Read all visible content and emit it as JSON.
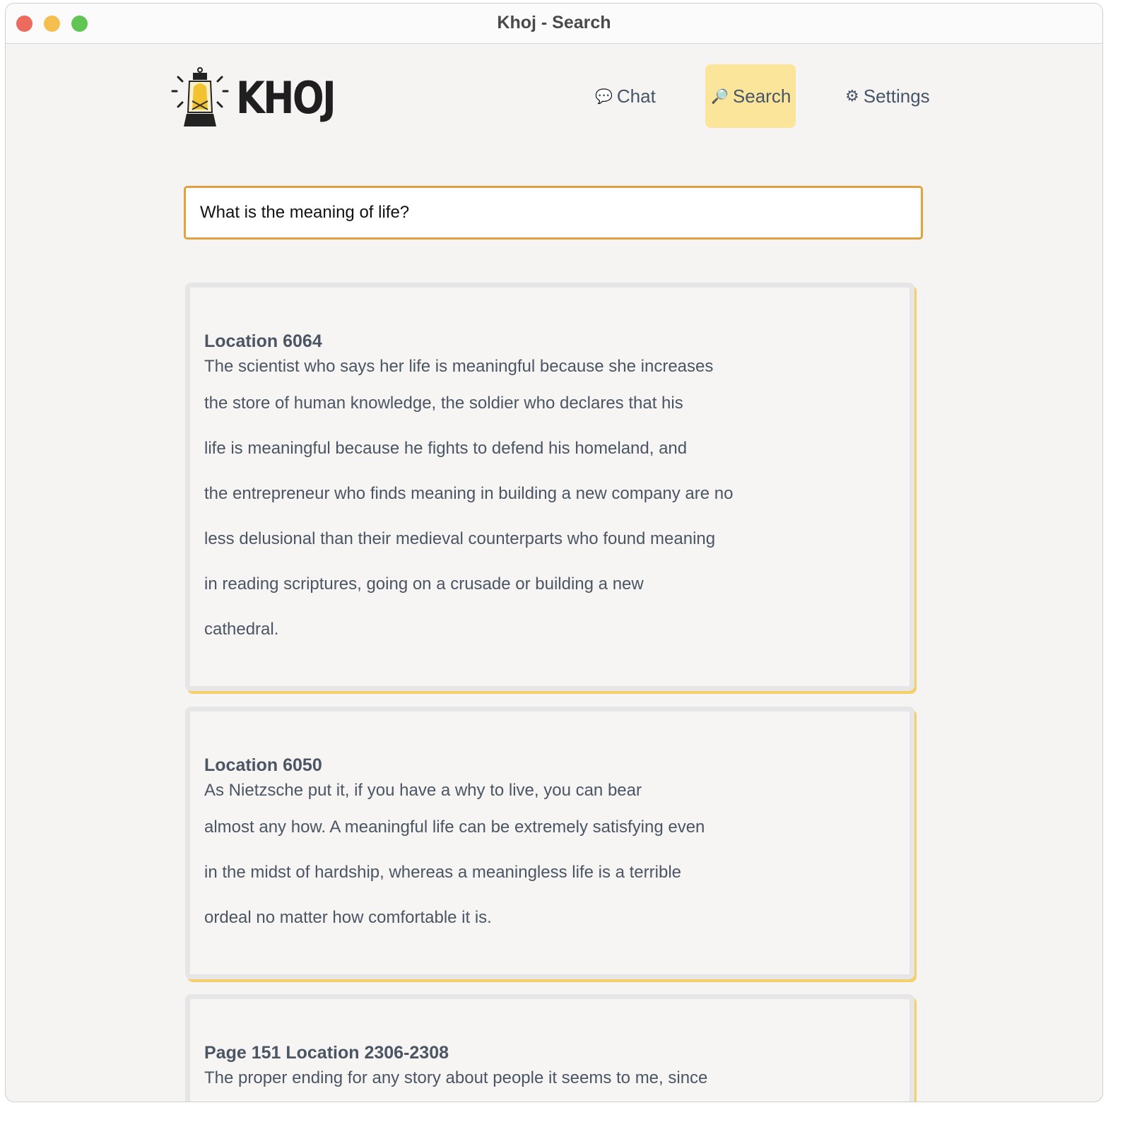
{
  "window": {
    "title": "Khoj - Search",
    "controls": {
      "close": "#ed6a5e",
      "minimize": "#f5bf4f",
      "maximize": "#61c554"
    }
  },
  "logo": {
    "text": "KHOJ"
  },
  "nav": [
    {
      "label": "Chat",
      "icon": "speech-bubble-icon"
    },
    {
      "label": "Search",
      "icon": "magnifier-icon",
      "active": true
    },
    {
      "label": "Settings",
      "icon": "gear-icon"
    }
  ],
  "search": {
    "value": "What is the meaning of life?"
  },
  "colors": {
    "accent": "#e0a23f",
    "active_nav": "#fae59a",
    "card_shadow": "#f5d06a"
  },
  "results": [
    {
      "heading": "Location 6064",
      "lines": [
        "The scientist who says her life is meaningful because she increases",
        "the store of human knowledge, the soldier who declares that his",
        "life is meaningful because he fights to defend his homeland, and",
        "the entrepreneur who finds meaning in building a new company are no",
        "less delusional than their medieval counterparts who found meaning",
        "in reading scriptures, going on a crusade or building a new",
        "cathedral."
      ]
    },
    {
      "heading": "Location 6050",
      "lines": [
        "As Nietzsche put it, if you have a why to live, you can bear",
        "almost any how. A meaningful life can be extremely satisfying even",
        "in the midst of hardship, whereas a meaningless life is a terrible",
        "ordeal no matter how comfortable it is."
      ]
    },
    {
      "heading": "Page 151 Location 2306-2308",
      "lines": [
        "The proper ending for any story about people it seems to me, since"
      ]
    }
  ]
}
